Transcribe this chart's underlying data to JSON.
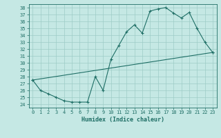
{
  "xlabel": "Humidex (Indice chaleur)",
  "bg_color": "#c5e8e4",
  "grid_color": "#9dccc6",
  "line_color": "#1e6e65",
  "xlim": [
    -0.5,
    23.5
  ],
  "ylim": [
    23.5,
    38.5
  ],
  "xticks": [
    0,
    1,
    2,
    3,
    4,
    5,
    6,
    7,
    8,
    9,
    10,
    11,
    12,
    13,
    14,
    15,
    16,
    17,
    18,
    19,
    20,
    21,
    22,
    23
  ],
  "yticks": [
    24,
    25,
    26,
    27,
    28,
    29,
    30,
    31,
    32,
    33,
    34,
    35,
    36,
    37,
    38
  ],
  "line1_x": [
    0,
    1,
    2,
    3,
    4,
    5,
    6,
    7,
    8,
    9,
    10,
    11,
    12,
    13,
    14,
    15,
    16,
    17,
    18,
    19,
    20,
    21,
    22,
    23
  ],
  "line1_y": [
    27.5,
    26.0,
    25.5,
    25.0,
    24.5,
    24.3,
    24.3,
    24.3,
    28.0,
    26.0,
    30.5,
    32.5,
    34.5,
    35.5,
    34.3,
    37.5,
    37.8,
    38.0,
    37.2,
    36.5,
    37.3,
    35.0,
    33.0,
    31.5
  ],
  "line2_x": [
    0,
    23
  ],
  "line2_y": [
    27.5,
    31.5
  ]
}
